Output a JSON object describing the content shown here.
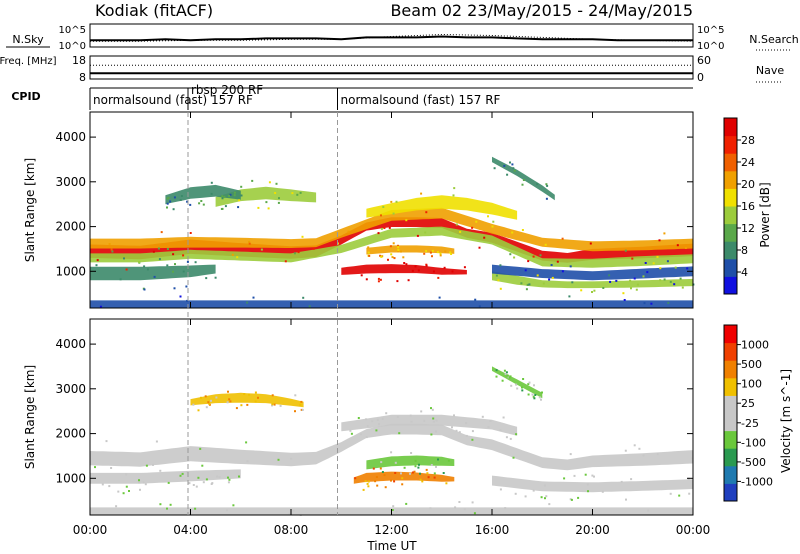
{
  "header": {
    "station": "Kodiak (fitACF)",
    "beam_and_dates": "Beam 02  23/May/2015 - 24/May/2015"
  },
  "colors": {
    "power_scale": [
      "#1010e0",
      "#1f4fa8",
      "#3c8a6a",
      "#5aa84a",
      "#9ccc3c",
      "#f0e000",
      "#f0a000",
      "#f06000",
      "#f02000",
      "#e00000"
    ],
    "velocity_scale": [
      "#1f3fbf",
      "#1f7ab0",
      "#2a9a50",
      "#6ac83c",
      "#c8c8c8",
      "#c8c8c8",
      "#f0c000",
      "#f08000",
      "#f04000",
      "#f00000"
    ],
    "ground_scatter": "#c0c0c0"
  },
  "chart_data": [
    {
      "type": "line",
      "panel": "noise",
      "left_axis_label": "N.Sky",
      "right_axis_label": "N.Search",
      "left_ticks": [
        "10^5",
        "10^0"
      ],
      "right_ticks": [
        "10^5",
        "10^0"
      ],
      "series": [
        {
          "style": "solid",
          "x": [
            0,
            1,
            2,
            3,
            4,
            5,
            6,
            7,
            8,
            9,
            10,
            11,
            12,
            13,
            14,
            15,
            16,
            17,
            18,
            19,
            20,
            21,
            22,
            23,
            24
          ],
          "values": [
            5,
            5,
            5,
            6,
            5,
            6,
            6,
            7,
            7,
            7,
            6,
            8,
            8,
            8,
            9,
            8,
            8,
            7,
            6,
            6,
            6,
            5,
            5,
            5,
            5
          ]
        },
        {
          "style": "dotted",
          "x": [
            0,
            2,
            4,
            6,
            8,
            10,
            12,
            14,
            16,
            18,
            20,
            22,
            24
          ],
          "values": [
            4,
            4,
            5,
            5,
            6,
            6,
            9,
            11,
            10,
            8,
            6,
            5,
            4
          ]
        }
      ]
    },
    {
      "type": "line",
      "panel": "frequency",
      "left_axis_label": "Freq. [MHz]",
      "right_axis_label": "Nave",
      "left_ticks": [
        "18",
        "8"
      ],
      "right_ticks": [
        "60",
        "0"
      ],
      "series": [
        {
          "style": "solid",
          "x": [
            0,
            24
          ],
          "values": [
            10.5,
            10.5
          ]
        },
        {
          "style": "dotted",
          "x": [
            0,
            24
          ],
          "values": [
            14,
            14
          ]
        }
      ]
    },
    {
      "type": "table",
      "panel": "cpid",
      "label": "CPID",
      "segments": [
        {
          "start": 0,
          "end": 3.9,
          "text": "normalsound (fast) 157 RF"
        },
        {
          "start": 3.9,
          "end": 9.85,
          "text": "rbsp 200 RF"
        },
        {
          "start": 9.85,
          "end": 24,
          "text": "normalsound (fast) 157 RF"
        }
      ]
    },
    {
      "type": "heatmap",
      "panel": "power",
      "ylabel": "Slant Range [km]",
      "xlim": [
        0,
        24
      ],
      "ylim": [
        180,
        4560
      ],
      "yticks": [
        1000,
        2000,
        3000,
        4000
      ],
      "colorbar_label": "Power [dB]",
      "colorbar_ticks": [
        "4",
        "8",
        "12",
        "16",
        "20",
        "24",
        "28"
      ],
      "bands": [
        {
          "start": 0,
          "end": 24,
          "t": [
            0,
            2,
            4,
            6,
            8,
            9,
            10,
            11,
            12,
            13,
            14,
            15,
            16,
            17,
            18,
            19,
            20,
            22,
            24
          ],
          "range": [
            1450,
            1420,
            1550,
            1480,
            1420,
            1450,
            1700,
            2000,
            2100,
            2100,
            2080,
            1850,
            1750,
            1550,
            1350,
            1300,
            1380,
            1420,
            1480
          ],
          "width": [
            300,
            300,
            320,
            300,
            280,
            260,
            200,
            180,
            220,
            220,
            220,
            200,
            220,
            220,
            220,
            220,
            240,
            260,
            280
          ],
          "level": 9
        },
        {
          "start": 0,
          "end": 24,
          "t": [
            0,
            2,
            4,
            6,
            8,
            9,
            10,
            12,
            14,
            16,
            18,
            20,
            22,
            24
          ],
          "range": [
            1620,
            1620,
            1650,
            1640,
            1620,
            1640,
            1850,
            2250,
            2300,
            1950,
            1650,
            1560,
            1580,
            1620
          ],
          "width": [
            220,
            220,
            240,
            220,
            200,
            200,
            200,
            240,
            240,
            220,
            200,
            220,
            220,
            220
          ],
          "level": 6
        },
        {
          "start": 0,
          "end": 24,
          "t": [
            0,
            2,
            4,
            6,
            8,
            10,
            12,
            14,
            16,
            18,
            20,
            22,
            24
          ],
          "range": [
            1300,
            1300,
            1380,
            1340,
            1300,
            1500,
            1850,
            1900,
            1700,
            1200,
            1180,
            1230,
            1280
          ],
          "width": [
            200,
            200,
            200,
            200,
            200,
            180,
            200,
            200,
            200,
            180,
            200,
            220,
            200
          ],
          "level": 4
        },
        {
          "start": 0,
          "end": 5,
          "t": [
            0,
            2,
            4,
            5
          ],
          "range": [
            950,
            950,
            1000,
            1050
          ],
          "width": [
            300,
            300,
            260,
            200
          ],
          "level": 2
        },
        {
          "start": 10,
          "end": 15,
          "t": [
            10,
            11,
            12,
            13,
            14,
            15
          ],
          "range": [
            1000,
            1050,
            1060,
            1050,
            1000,
            980
          ],
          "width": [
            160,
            200,
            200,
            180,
            150,
            100
          ],
          "level": 9
        },
        {
          "start": 11,
          "end": 14.5,
          "t": [
            11,
            12,
            13,
            14,
            14.5
          ],
          "range": [
            1450,
            1500,
            1500,
            1480,
            1450
          ],
          "width": [
            150,
            160,
            160,
            150,
            120
          ],
          "level": 6
        },
        {
          "start": 16,
          "end": 24,
          "t": [
            16,
            17,
            18,
            19,
            20,
            22,
            24
          ],
          "range": [
            900,
            800,
            720,
            700,
            700,
            720,
            750
          ],
          "width": [
            200,
            200,
            160,
            150,
            150,
            160,
            160
          ],
          "level": 4
        },
        {
          "start": 16,
          "end": 24,
          "t": [
            16,
            18,
            20,
            22,
            24
          ],
          "range": [
            1050,
            950,
            900,
            950,
            1000
          ],
          "width": [
            200,
            200,
            200,
            220,
            220
          ],
          "level": 1
        },
        {
          "start": 5,
          "end": 9,
          "t": [
            5,
            6,
            7,
            8,
            9
          ],
          "range": [
            2550,
            2700,
            2750,
            2700,
            2650
          ],
          "width": [
            220,
            260,
            280,
            260,
            220
          ],
          "level": 4
        },
        {
          "start": 3,
          "end": 6,
          "t": [
            3,
            4,
            5,
            6
          ],
          "range": [
            2600,
            2750,
            2800,
            2700
          ],
          "width": [
            200,
            260,
            260,
            200
          ],
          "level": 2
        },
        {
          "start": 11,
          "end": 17,
          "t": [
            11,
            12,
            13,
            14,
            15,
            16,
            17
          ],
          "range": [
            2300,
            2400,
            2500,
            2550,
            2500,
            2400,
            2250
          ],
          "width": [
            200,
            250,
            280,
            300,
            280,
            260,
            200
          ],
          "level": 5
        },
        {
          "start": 16,
          "end": 18.5,
          "t": [
            16,
            17,
            18,
            18.5
          ],
          "range": [
            3500,
            3200,
            2850,
            2650
          ],
          "width": [
            120,
            140,
            140,
            120
          ],
          "level": 2
        },
        {
          "start": 0,
          "end": 24,
          "t": [
            0,
            24
          ],
          "range": [
            260,
            260
          ],
          "width": [
            180,
            180
          ],
          "level": 1
        }
      ]
    },
    {
      "type": "heatmap",
      "panel": "velocity",
      "ylabel": "Slant Range [km]",
      "xlabel": "Time UT",
      "xlim": [
        0,
        24
      ],
      "ylim": [
        180,
        4560
      ],
      "yticks": [
        1000,
        2000,
        3000,
        4000
      ],
      "xticks": [
        "00:00",
        "04:00",
        "08:00",
        "12:00",
        "16:00",
        "20:00",
        "00:00"
      ],
      "colorbar_label": "Velocity [m s^-1]",
      "colorbar_ticks": [
        "1000",
        "500",
        "100",
        "25",
        "-25",
        "-100",
        "-500",
        "-1000"
      ],
      "bands": [
        {
          "start": 0,
          "end": 24,
          "t": [
            0,
            2,
            4,
            6,
            8,
            9,
            10,
            11,
            12,
            13,
            14,
            15,
            16,
            17,
            18,
            19,
            20,
            22,
            24
          ],
          "range": [
            1450,
            1420,
            1550,
            1480,
            1420,
            1450,
            1700,
            2000,
            2100,
            2100,
            2080,
            1850,
            1750,
            1550,
            1350,
            1300,
            1380,
            1420,
            1480
          ],
          "width": [
            320,
            320,
            340,
            320,
            300,
            280,
            220,
            200,
            240,
            240,
            240,
            220,
            240,
            240,
            240,
            240,
            260,
            280,
            300
          ],
          "level": 4
        },
        {
          "start": 10,
          "end": 17,
          "t": [
            10,
            12,
            14,
            16,
            17
          ],
          "range": [
            2150,
            2300,
            2300,
            2200,
            2050
          ],
          "width": [
            200,
            240,
            240,
            220,
            200
          ],
          "level": 4
        },
        {
          "start": 16,
          "end": 24,
          "t": [
            16,
            18,
            20,
            22,
            24
          ],
          "range": [
            950,
            820,
            800,
            830,
            870
          ],
          "width": [
            220,
            220,
            220,
            220,
            220
          ],
          "level": 4
        },
        {
          "start": 0,
          "end": 6,
          "t": [
            0,
            2,
            4,
            6
          ],
          "range": [
            1000,
            1000,
            1050,
            1100
          ],
          "width": [
            240,
            240,
            240,
            200
          ],
          "level": 4
        },
        {
          "start": 10.5,
          "end": 14.5,
          "t": [
            10.5,
            11,
            12,
            13,
            14,
            14.5
          ],
          "range": [
            950,
            1020,
            1050,
            1040,
            1000,
            980
          ],
          "width": [
            140,
            200,
            200,
            180,
            150,
            100
          ],
          "level": 7
        },
        {
          "start": 11,
          "end": 14.5,
          "t": [
            11,
            12,
            13,
            14,
            14.5
          ],
          "range": [
            1300,
            1380,
            1400,
            1380,
            1350
          ],
          "width": [
            200,
            220,
            220,
            200,
            150
          ],
          "level": 3
        },
        {
          "start": 4,
          "end": 8.5,
          "t": [
            4,
            5,
            6,
            7,
            8,
            8.5
          ],
          "range": [
            2700,
            2780,
            2800,
            2780,
            2700,
            2650
          ],
          "width": [
            140,
            200,
            220,
            200,
            160,
            120
          ],
          "level": 6
        },
        {
          "start": 16,
          "end": 18,
          "t": [
            16,
            17,
            18
          ],
          "range": [
            3450,
            3150,
            2850
          ],
          "width": [
            100,
            120,
            120
          ],
          "level": 3
        },
        {
          "start": 0,
          "end": 24,
          "t": [
            0,
            24
          ],
          "range": [
            260,
            260
          ],
          "width": [
            180,
            180
          ],
          "level": 4
        }
      ]
    }
  ]
}
